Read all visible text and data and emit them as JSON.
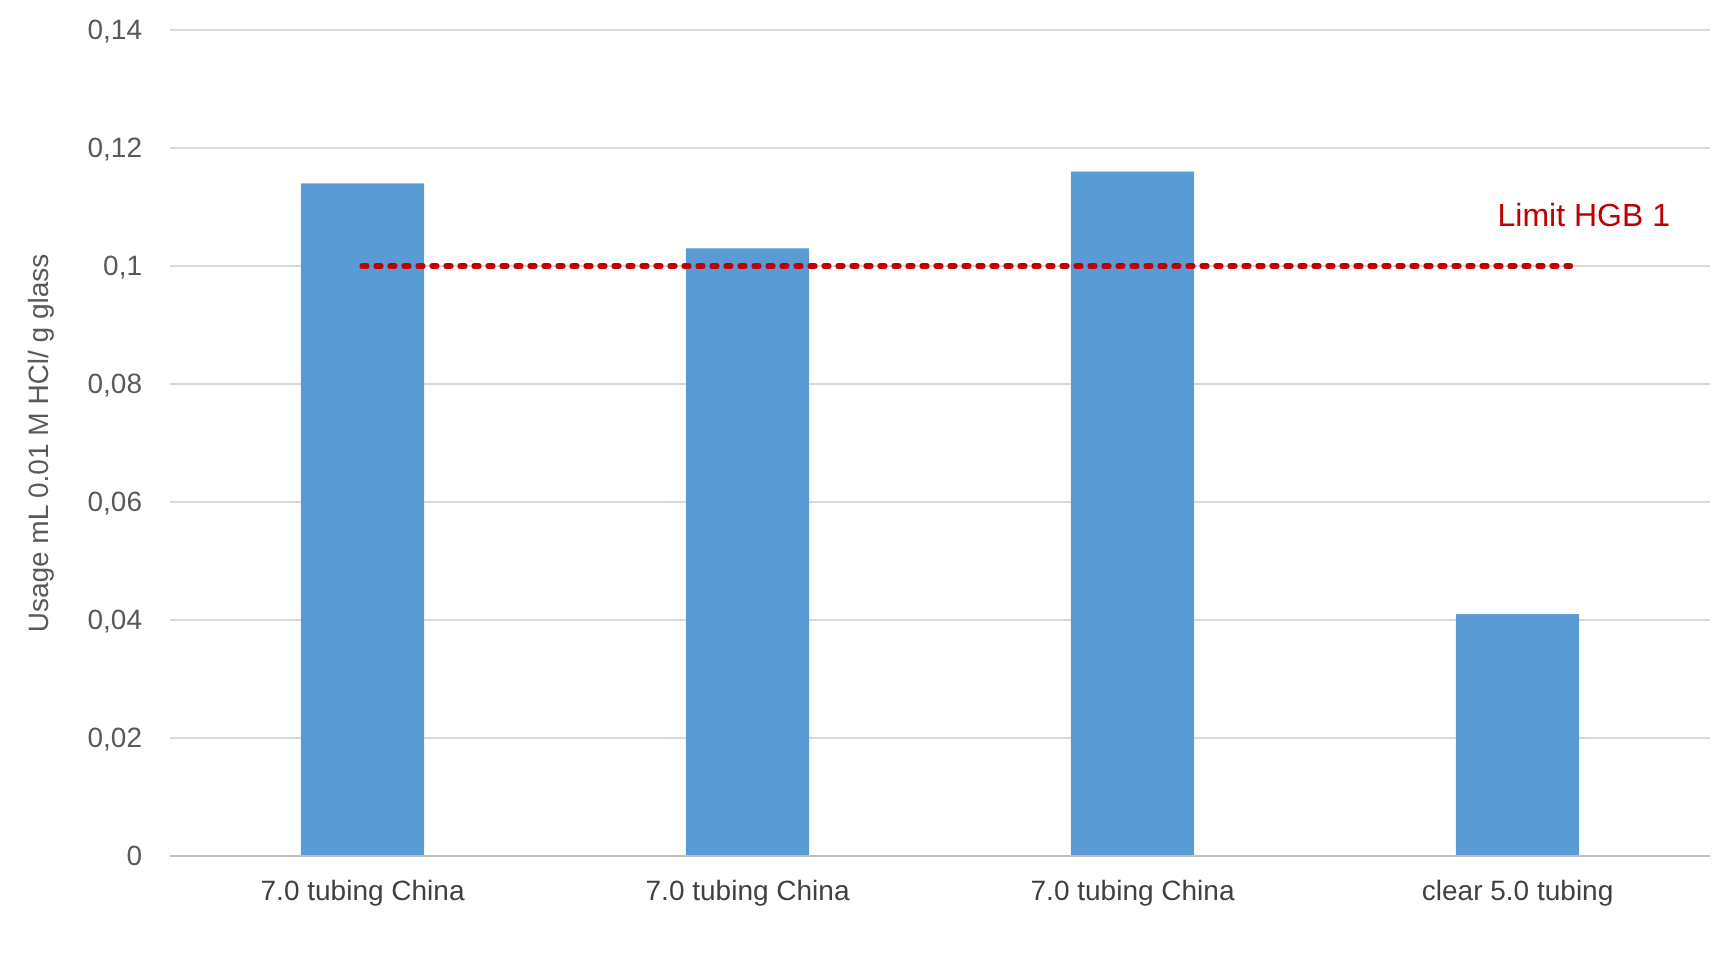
{
  "chart_data": {
    "type": "bar",
    "ylabel": "Usage mL 0.01 M HCl/ g glass",
    "categories": [
      "7.0 tubing China",
      "7.0 tubing China",
      "7.0 tubing China",
      "clear 5.0 tubing"
    ],
    "series": [
      {
        "color": "#5b9bd5",
        "values": [
          0.114,
          0.103,
          0.116,
          0.041
        ]
      }
    ],
    "ylim": [
      0,
      0.14
    ],
    "yticks": [
      0,
      {
        "value": 0.02,
        "label": "0,02"
      },
      {
        "value": 0.04,
        "label": "0,04"
      },
      {
        "value": 0.06,
        "label": "0,06"
      },
      {
        "value": 0.08,
        "label": "0,08"
      },
      {
        "value": 0.1,
        "label": "0,1"
      },
      {
        "value": 0.12,
        "label": "0,12"
      },
      {
        "value": 0.14,
        "label": "0,14"
      }
    ],
    "grid": "y",
    "ref_lines": [
      {
        "axis": "y",
        "value": 0.1,
        "label": "Limit HGB 1",
        "color": "#c00000",
        "line_style": "dotted"
      }
    ]
  }
}
